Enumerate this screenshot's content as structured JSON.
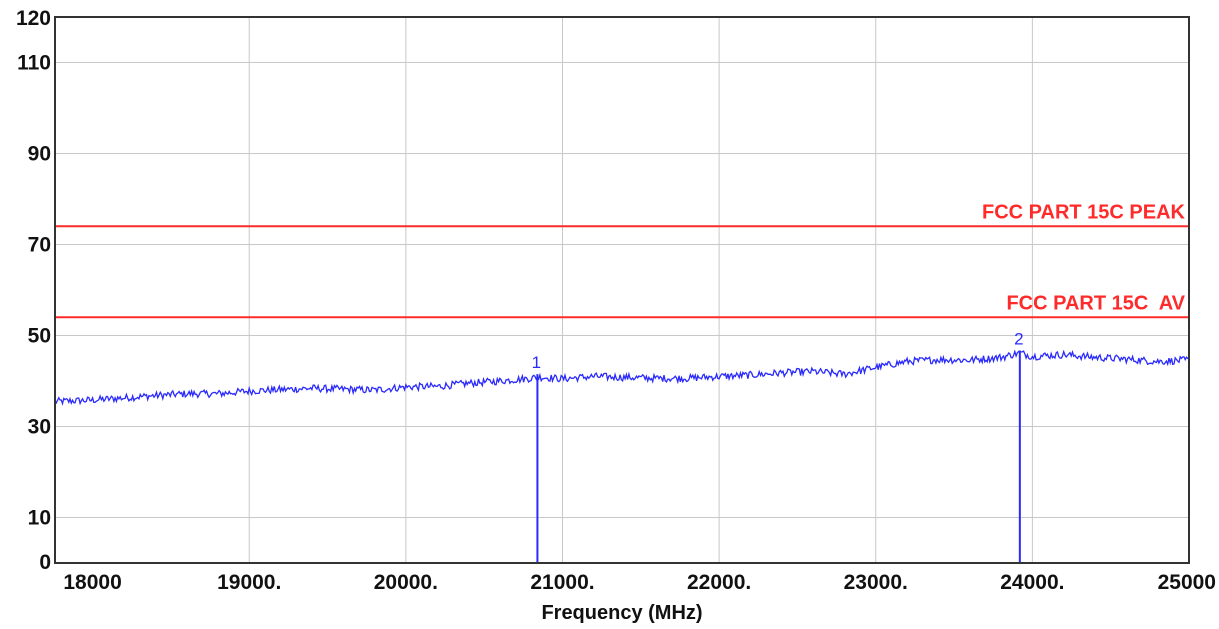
{
  "chart_data": {
    "type": "line",
    "xlabel": "Frequency (MHz)",
    "ylabel": "",
    "xlim": [
      17760,
      25000
    ],
    "ylim": [
      0,
      120
    ],
    "grid": true,
    "x_ticks": [
      {
        "value": 18000,
        "label": "18000"
      },
      {
        "value": 19000,
        "label": "19000."
      },
      {
        "value": 20000,
        "label": "20000."
      },
      {
        "value": 21000,
        "label": "21000."
      },
      {
        "value": 22000,
        "label": "22000."
      },
      {
        "value": 23000,
        "label": "23000."
      },
      {
        "value": 24000,
        "label": "24000."
      },
      {
        "value": 25000,
        "label": "25000"
      }
    ],
    "y_ticks": [
      {
        "value": 0,
        "label": "0"
      },
      {
        "value": 10,
        "label": "10"
      },
      {
        "value": 30,
        "label": "30"
      },
      {
        "value": 50,
        "label": "50"
      },
      {
        "value": 70,
        "label": "70"
      },
      {
        "value": 90,
        "label": "90"
      },
      {
        "value": 110,
        "label": "110"
      },
      {
        "value": 120,
        "label": "120"
      }
    ],
    "y_grid": [
      10,
      30,
      50,
      70,
      90,
      110
    ],
    "x_grid": [
      19000,
      20000,
      21000,
      22000,
      23000,
      24000
    ],
    "limit_lines": [
      {
        "name": "FCC PART 15C PEAK",
        "value": 74,
        "color": "#ff2a2a"
      },
      {
        "name": "FCC PART 15C  AV",
        "value": 54,
        "color": "#ff2a2a"
      }
    ],
    "series": [
      {
        "color": "#2a2aff",
        "x": [
          17760,
          18000,
          18200,
          18400,
          18600,
          18800,
          19000,
          19200,
          19400,
          19600,
          19800,
          20000,
          20200,
          20400,
          20600,
          20800,
          20840,
          21000,
          21200,
          21400,
          21600,
          21800,
          22000,
          22200,
          22400,
          22600,
          22800,
          23000,
          23200,
          23400,
          23600,
          23800,
          23920,
          24000,
          24200,
          24400,
          24600,
          24800,
          25000
        ],
        "values": [
          35.5,
          35.8,
          36.3,
          36.8,
          37.2,
          37.2,
          37.8,
          38.1,
          38.4,
          38.2,
          38.0,
          38.7,
          38.8,
          39.5,
          40.0,
          40.6,
          40.9,
          40.5,
          41.0,
          40.8,
          40.6,
          40.6,
          41.0,
          41.3,
          41.8,
          42.1,
          41.5,
          43.0,
          44.3,
          44.7,
          44.6,
          45.2,
          46.2,
          45.4,
          45.8,
          45.2,
          44.8,
          44.3,
          44.6
        ]
      }
    ],
    "markers": [
      {
        "label": "1",
        "x": 20840,
        "y": 41.5
      },
      {
        "label": "2",
        "x": 23920,
        "y": 46.7
      }
    ]
  }
}
